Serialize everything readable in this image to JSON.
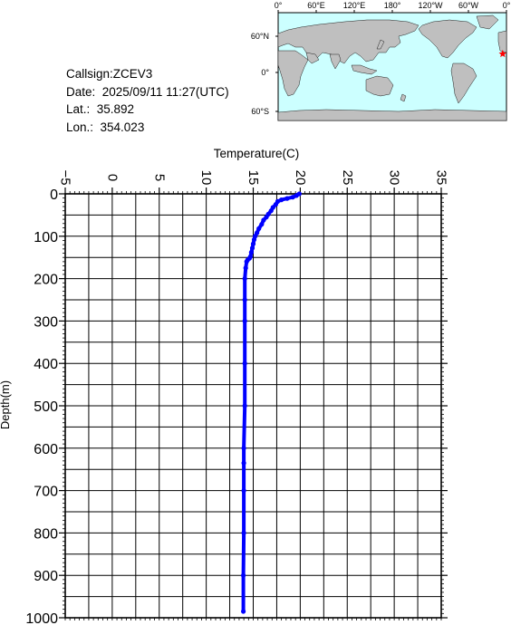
{
  "info": {
    "callsign": "Callsign:ZCEV3",
    "date": "Date:  2025/09/11 11:27(UTC)",
    "lat": "Lat.:  35.892",
    "lon": "Lon.:  354.023"
  },
  "map": {
    "top_labels": [
      "0°",
      "60°E",
      "120°E",
      "180°",
      "120°W",
      "60°W",
      "0°"
    ],
    "left_labels": [
      "60°N",
      "0°",
      "60°S"
    ],
    "ocean_color": "#ccffff",
    "land_color": "#bfbfbf",
    "marker_color": "#ff0000",
    "marker_lon": 354.023,
    "marker_lat": 35.892
  },
  "chart_data": {
    "type": "line",
    "title": "",
    "xlabel": "Temperature(C)",
    "ylabel": "Depth(m)",
    "xlim": [
      -5,
      35
    ],
    "ylim": [
      0,
      1000
    ],
    "y_inverted": true,
    "x_axis_position": "top",
    "x_ticks": [
      -5,
      0,
      5,
      10,
      15,
      20,
      25,
      30,
      35
    ],
    "y_ticks": [
      0,
      100,
      200,
      300,
      400,
      500,
      600,
      700,
      800,
      900,
      1000
    ],
    "grid": true,
    "series": [
      {
        "color": "#0000ff",
        "x": [
          19.9,
          19.6,
          19.2,
          18.6,
          18.0,
          17.6,
          17.4,
          17.1,
          16.9,
          16.6,
          16.4,
          16.1,
          15.9,
          15.6,
          15.4,
          15.2,
          15.1,
          15.0,
          14.9,
          14.8,
          14.7,
          14.6,
          14.4,
          14.3,
          14.2,
          14.1,
          14.1,
          14.1,
          14.1,
          14.1,
          14.0,
          14.0,
          14.0,
          14.0,
          13.95,
          13.95
        ],
        "y": [
          0,
          4,
          8,
          11,
          14,
          18,
          25,
          32,
          40,
          48,
          55,
          62,
          72,
          82,
          92,
          100,
          108,
          118,
          128,
          138,
          148,
          152,
          156,
          160,
          175,
          200,
          250,
          300,
          400,
          500,
          600,
          635,
          700,
          800,
          900,
          985
        ]
      }
    ]
  }
}
